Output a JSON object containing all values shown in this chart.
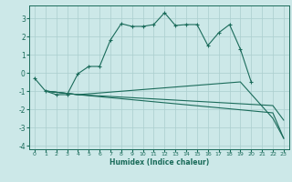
{
  "xlabel": "Humidex (Indice chaleur)",
  "bg_color": "#cce8e8",
  "grid_color": "#aacece",
  "line_color": "#1a6b5a",
  "xlim": [
    -0.5,
    23.5
  ],
  "ylim": [
    -4.2,
    3.7
  ],
  "yticks": [
    -4,
    -3,
    -2,
    -1,
    0,
    1,
    2,
    3
  ],
  "xticks": [
    0,
    1,
    2,
    3,
    4,
    5,
    6,
    7,
    8,
    9,
    10,
    11,
    12,
    13,
    14,
    15,
    16,
    17,
    18,
    19,
    20,
    21,
    22,
    23
  ],
  "line1_x": [
    0,
    1,
    2,
    3,
    4,
    5,
    6,
    7,
    8,
    9,
    10,
    11,
    12,
    13,
    14,
    15,
    16,
    17,
    18,
    19,
    20
  ],
  "line1_y": [
    -0.3,
    -1.0,
    -1.2,
    -1.2,
    -0.05,
    0.35,
    0.35,
    1.8,
    2.7,
    2.55,
    2.55,
    2.65,
    3.3,
    2.6,
    2.65,
    2.65,
    1.5,
    2.2,
    2.65,
    1.3,
    -0.5
  ],
  "line2_x": [
    1,
    4,
    22,
    23
  ],
  "line2_y": [
    -1.0,
    -1.2,
    -2.2,
    -3.6
  ],
  "line3_x": [
    1,
    4,
    22,
    23
  ],
  "line3_y": [
    -1.0,
    -1.2,
    -1.8,
    -2.6
  ],
  "line4_x": [
    1,
    4,
    19,
    22,
    23
  ],
  "line4_y": [
    -1.0,
    -1.2,
    -0.5,
    -2.5,
    -3.6
  ],
  "figwidth": 3.2,
  "figheight": 2.0,
  "dpi": 100
}
